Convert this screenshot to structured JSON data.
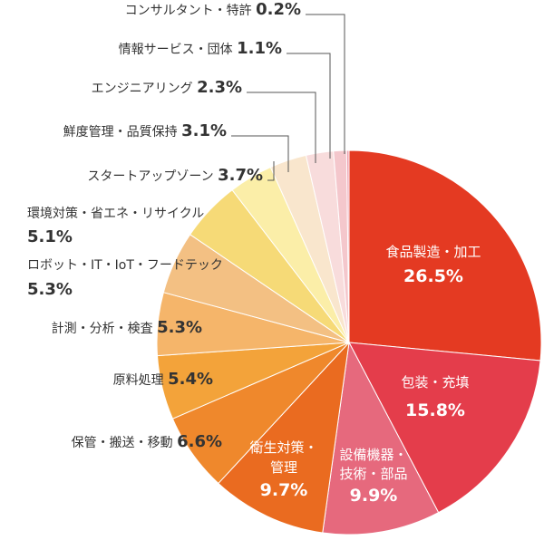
{
  "chart_data": {
    "type": "pie",
    "title": "",
    "direction": "clockwise-from-top",
    "value_suffix": "%",
    "slices": [
      {
        "label": "食品製造・加工",
        "value": 26.5,
        "color": "#e43a22"
      },
      {
        "label": "包装・充填",
        "value": 15.8,
        "color": "#e43d4b"
      },
      {
        "label": "設備機器・技術・部品",
        "value": 9.9,
        "color": "#e6697d"
      },
      {
        "label": "衛生対策・管理",
        "value": 9.7,
        "color": "#ea6b20"
      },
      {
        "label": "保管・搬送・移動",
        "value": 6.6,
        "color": "#ef882c"
      },
      {
        "label": "原料処理",
        "value": 5.4,
        "color": "#f3a33a"
      },
      {
        "label": "計測・分析・検査",
        "value": 5.3,
        "color": "#f5b56a"
      },
      {
        "label": "ロボット・IT・IoT・フードテック",
        "value": 5.3,
        "color": "#f3c083"
      },
      {
        "label": "環境対策・省エネ・リサイクル",
        "value": 5.1,
        "color": "#f6da77"
      },
      {
        "label": "スタートアップゾーン",
        "value": 3.7,
        "color": "#fbeea8"
      },
      {
        "label": "鮮度管理・品質保持",
        "value": 3.1,
        "color": "#f9e6cd"
      },
      {
        "label": "エンジニアリング",
        "value": 2.3,
        "color": "#f8dcdc"
      },
      {
        "label": "情報サービス・団体",
        "value": 1.1,
        "color": "#f4c7cc"
      },
      {
        "label": "コンサルタント・特許",
        "value": 0.2,
        "color": "#ee9eae"
      }
    ],
    "display_values": [
      "26.5",
      "15.8",
      "9.9",
      "9.7",
      "6.6",
      "5.4",
      "5.3",
      "5.3",
      "5.1",
      "3.7",
      "3.1",
      "2.3",
      "1.1",
      "0.2"
    ],
    "label_text": [
      {
        "lines": [
          "食品製造・加工"
        ]
      },
      {
        "lines": [
          "包装・充填"
        ]
      },
      {
        "lines": [
          "設備機器・",
          "技術・部品"
        ]
      },
      {
        "lines": [
          "衛生対策・",
          "管理"
        ]
      },
      {
        "lines": [
          "保管・搬送・移動"
        ]
      },
      {
        "lines": [
          "原料処理"
        ]
      },
      {
        "lines": [
          "計測・分析・検査"
        ]
      },
      {
        "lines": [
          "ロボット・IT・IoT・フードテック"
        ]
      },
      {
        "lines": [
          "環境対策・省エネ・リサイクル"
        ]
      },
      {
        "lines": [
          "スタートアップゾーン"
        ]
      },
      {
        "lines": [
          "鮮度管理・品質保持"
        ]
      },
      {
        "lines": [
          "エンジニアリング"
        ]
      },
      {
        "lines": [
          "情報サービス・団体"
        ]
      },
      {
        "lines": [
          "コンサルタント・特許"
        ]
      }
    ]
  }
}
